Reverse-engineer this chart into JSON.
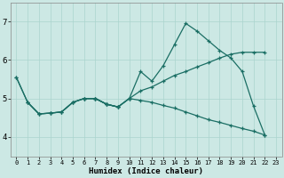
{
  "xlabel": "Humidex (Indice chaleur)",
  "background_color": "#cce8e4",
  "grid_color": "#aad4ce",
  "line_color": "#1a6e64",
  "xlim": [
    -0.5,
    23.5
  ],
  "ylim": [
    3.5,
    7.5
  ],
  "yticks": [
    4,
    5,
    6,
    7
  ],
  "xticks": [
    0,
    1,
    2,
    3,
    4,
    5,
    6,
    7,
    8,
    9,
    10,
    11,
    12,
    13,
    14,
    15,
    16,
    17,
    18,
    19,
    20,
    21,
    22,
    23
  ],
  "line1_x": [
    0,
    1,
    2,
    3,
    4,
    5,
    6,
    7,
    8,
    9,
    10,
    11,
    12,
    13,
    14,
    15,
    16,
    17,
    18,
    19,
    20,
    21,
    22
  ],
  "line1_y": [
    5.55,
    4.9,
    4.6,
    4.62,
    4.65,
    4.9,
    5.0,
    5.0,
    4.85,
    4.78,
    5.0,
    5.7,
    5.45,
    5.85,
    6.4,
    6.95,
    6.75,
    6.5,
    6.25,
    6.05,
    5.7,
    4.8,
    4.05
  ],
  "line2_x": [
    0,
    1,
    2,
    3,
    4,
    5,
    6,
    7,
    8,
    9,
    10,
    11,
    12,
    13,
    14,
    15,
    16,
    17,
    18,
    19,
    20,
    21,
    22
  ],
  "line2_y": [
    5.55,
    4.9,
    4.6,
    4.62,
    4.65,
    4.9,
    5.0,
    5.0,
    4.85,
    4.78,
    5.0,
    5.2,
    5.3,
    5.45,
    5.6,
    5.7,
    5.82,
    5.93,
    6.05,
    6.15,
    6.2,
    6.2,
    6.2
  ],
  "line3_x": [
    1,
    2,
    3,
    4,
    5,
    6,
    7,
    8,
    9,
    10,
    11,
    12,
    13,
    14,
    15,
    16,
    17,
    18,
    19,
    20,
    21,
    22
  ],
  "line3_y": [
    4.9,
    4.6,
    4.62,
    4.65,
    4.9,
    5.0,
    5.0,
    4.85,
    4.78,
    5.0,
    4.95,
    4.9,
    4.82,
    4.75,
    4.65,
    4.55,
    4.45,
    4.38,
    4.3,
    4.22,
    4.15,
    4.05
  ],
  "line4_x": [
    6,
    7,
    8,
    9
  ],
  "line4_y": [
    5.0,
    5.0,
    4.85,
    4.78
  ]
}
